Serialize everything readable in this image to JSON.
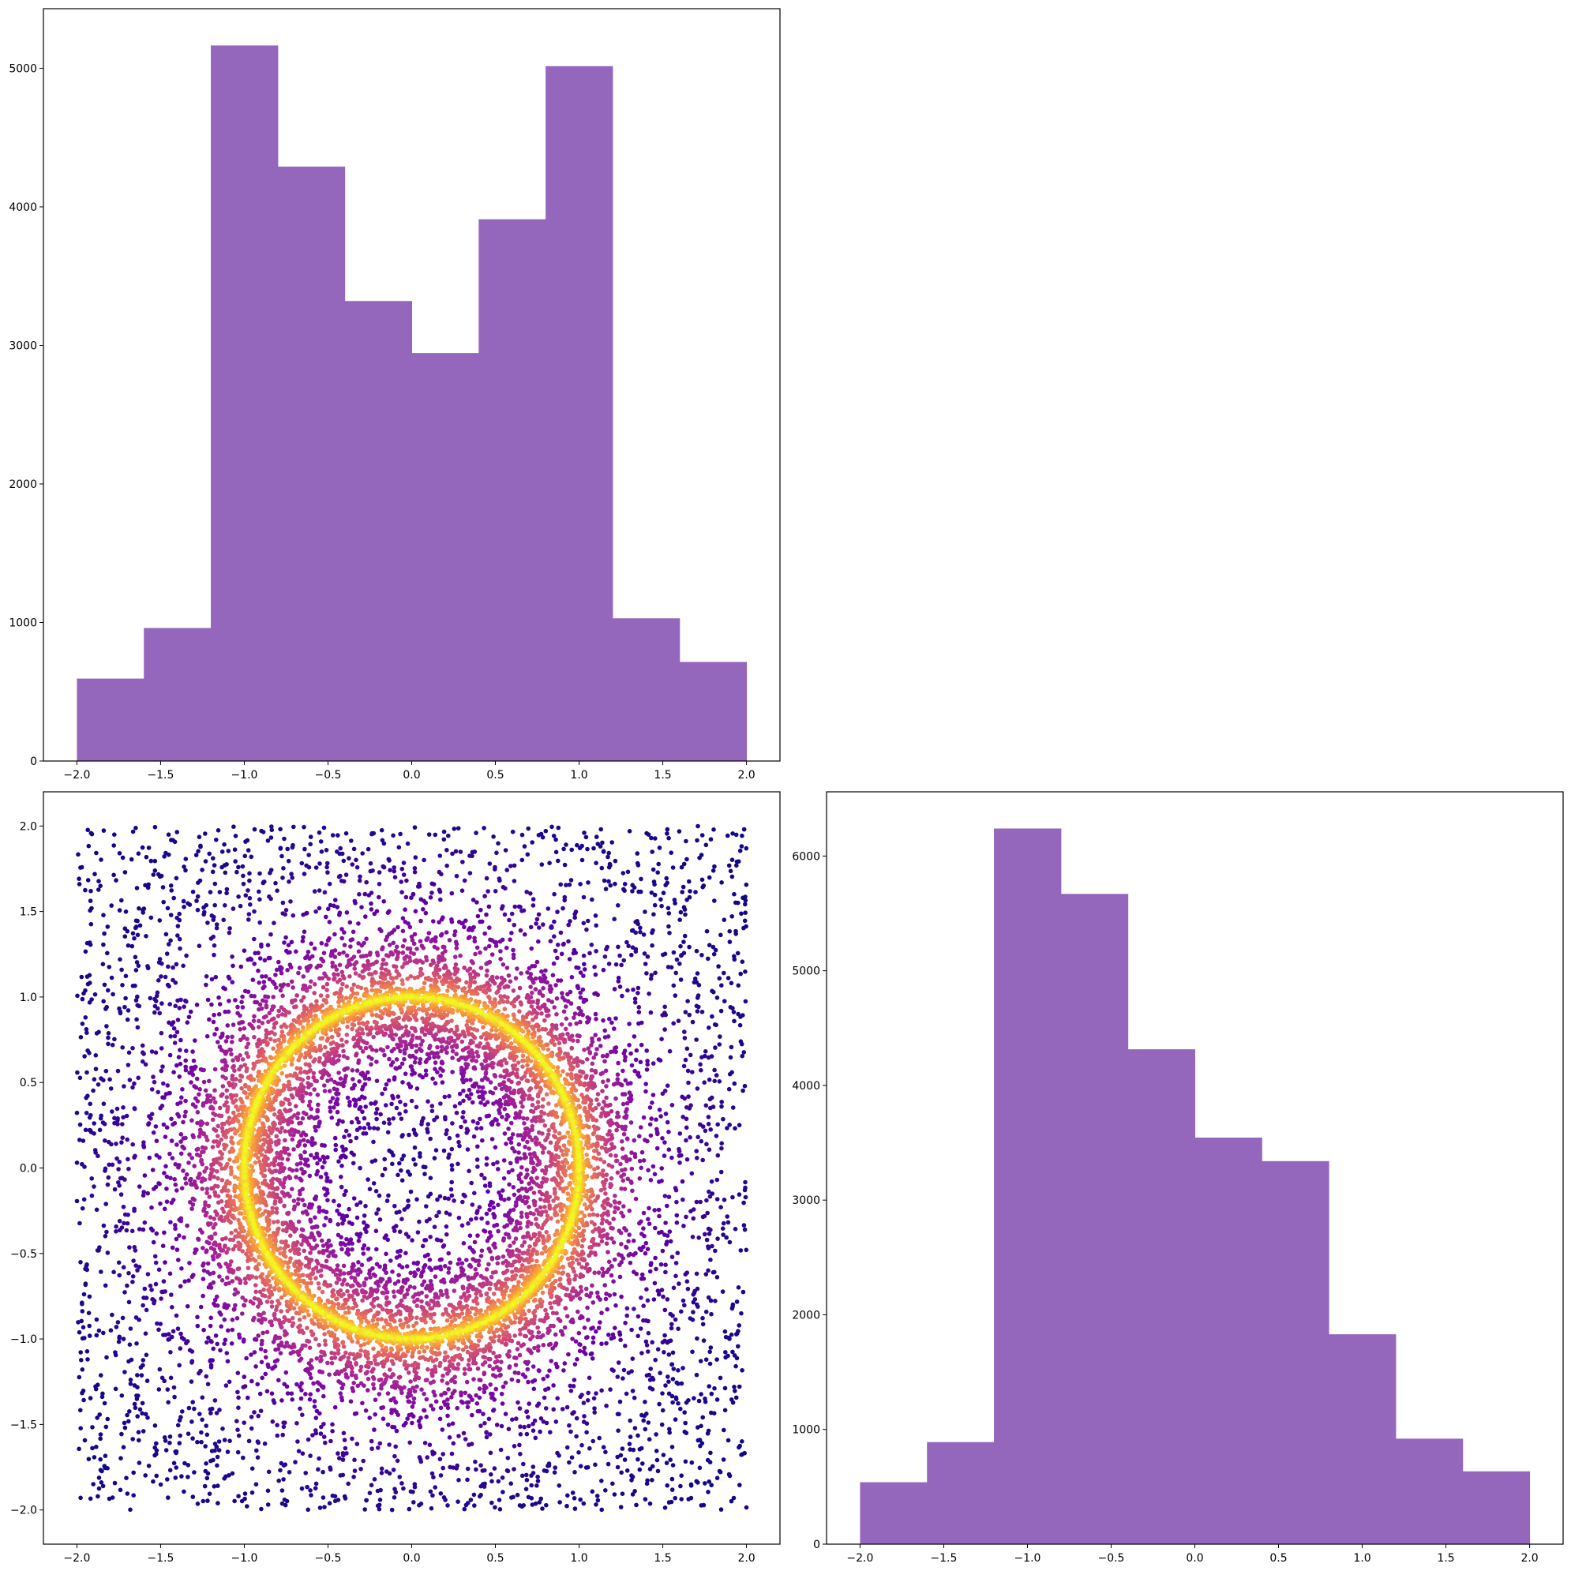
{
  "chart_data": [
    {
      "id": "hist_x",
      "type": "bar",
      "position": "top-left",
      "bin_edges": [
        -2.0,
        -1.6,
        -1.2,
        -0.8,
        -0.4,
        0.0,
        0.4,
        0.8,
        1.2,
        1.6,
        2.0
      ],
      "values": [
        595,
        960,
        5165,
        4290,
        3320,
        2945,
        3910,
        5015,
        1030,
        715
      ],
      "color": "#9467bd",
      "xlim": [
        -2.2,
        2.2
      ],
      "ylim": [
        0,
        5430
      ],
      "xticks": [
        -2.0,
        -1.5,
        -1.0,
        -0.5,
        0.0,
        0.5,
        1.0,
        1.5,
        2.0
      ],
      "xtick_labels": [
        "−2.0",
        "−1.5",
        "−1.0",
        "−0.5",
        "0.0",
        "0.5",
        "1.0",
        "1.5",
        "2.0"
      ],
      "yticks": [
        0,
        1000,
        2000,
        3000,
        4000,
        5000
      ],
      "ytick_labels": [
        "0",
        "1000",
        "2000",
        "3000",
        "4000",
        "5000"
      ],
      "title": "",
      "xlabel": "",
      "ylabel": ""
    },
    {
      "id": "scatter_xy",
      "type": "scatter",
      "position": "bottom-left",
      "description_of_distribution": "uniform points in [-2,2]x[-2,2] concentrated around the unit circle; colored by density (plasma colormap)",
      "x_range": [
        -2.0,
        2.0
      ],
      "y_range": [
        -2.0,
        2.0
      ],
      "ring_radius": 1.0,
      "colormap": [
        "#0d0887",
        "#6a00a8",
        "#b12a90",
        "#e16462",
        "#fca636",
        "#f0f921"
      ],
      "xlim": [
        -2.2,
        2.2
      ],
      "ylim": [
        -2.2,
        2.2
      ],
      "xticks": [
        -2.0,
        -1.5,
        -1.0,
        -0.5,
        0.0,
        0.5,
        1.0,
        1.5,
        2.0
      ],
      "xtick_labels": [
        "−2.0",
        "−1.5",
        "−1.0",
        "−0.5",
        "0.0",
        "0.5",
        "1.0",
        "1.5",
        "2.0"
      ],
      "yticks": [
        -2.0,
        -1.5,
        -1.0,
        -0.5,
        0.0,
        0.5,
        1.0,
        1.5,
        2.0
      ],
      "ytick_labels": [
        "−2.0",
        "−1.5",
        "−1.0",
        "−0.5",
        "0.0",
        "0.5",
        "1.0",
        "1.5",
        "2.0"
      ],
      "title": "",
      "xlabel": "",
      "ylabel": ""
    },
    {
      "id": "hist_y",
      "type": "bar",
      "position": "bottom-right",
      "bin_edges": [
        -2.0,
        -1.6,
        -1.2,
        -0.8,
        -0.4,
        0.0,
        0.4,
        0.8,
        1.2,
        1.6,
        2.0
      ],
      "values": [
        540,
        890,
        6240,
        5670,
        4315,
        3545,
        3340,
        1830,
        920,
        635
      ],
      "color": "#9467bd",
      "xlim": [
        -2.2,
        2.2
      ],
      "ylim": [
        0,
        6560
      ],
      "xticks": [
        -2.0,
        -1.5,
        -1.0,
        -0.5,
        0.0,
        0.5,
        1.0,
        1.5,
        2.0
      ],
      "xtick_labels": [
        "−2.0",
        "−1.5",
        "−1.0",
        "−0.5",
        "0.0",
        "0.5",
        "1.0",
        "1.5",
        "2.0"
      ],
      "yticks": [
        0,
        1000,
        2000,
        3000,
        4000,
        5000,
        6000
      ],
      "ytick_labels": [
        "0",
        "1000",
        "2000",
        "3000",
        "4000",
        "5000",
        "6000"
      ],
      "title": "",
      "xlabel": "",
      "ylabel": ""
    }
  ]
}
